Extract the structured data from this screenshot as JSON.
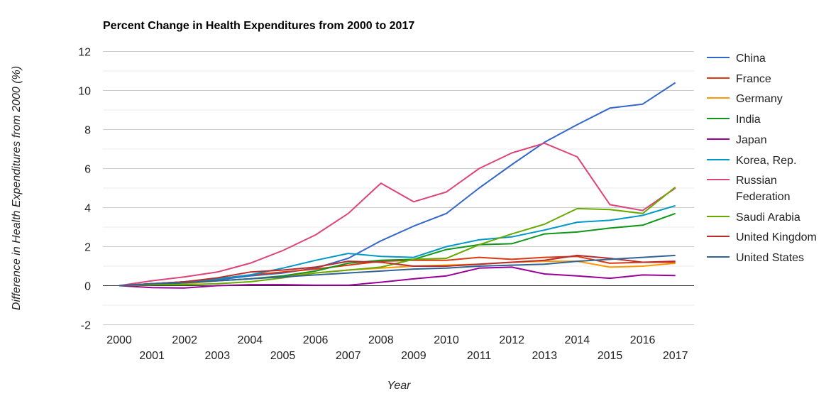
{
  "chart_data": {
    "type": "line",
    "title": "Percent Change in Health Expenditures from 2000 to 2017",
    "xlabel": "Year",
    "ylabel": "Difference in Health Expenditures from 2000 (%)",
    "ylim": [
      -2,
      12
    ],
    "yticks": [
      -2,
      0,
      2,
      4,
      6,
      8,
      10,
      12
    ],
    "x": [
      2000,
      2001,
      2002,
      2003,
      2004,
      2005,
      2006,
      2007,
      2008,
      2009,
      2010,
      2011,
      2012,
      2013,
      2014,
      2015,
      2016,
      2017
    ],
    "grid": true,
    "legend_position": "right",
    "series": [
      {
        "name": "China",
        "color": "#3366cc",
        "values": [
          0,
          0.1,
          0.2,
          0.3,
          0.5,
          0.65,
          0.9,
          1.4,
          2.3,
          3.05,
          3.7,
          5.0,
          6.2,
          7.35,
          8.25,
          9.1,
          9.3,
          10.4
        ]
      },
      {
        "name": "France",
        "color": "#dc3912",
        "values": [
          0,
          0.1,
          0.2,
          0.35,
          0.55,
          0.7,
          0.85,
          1.05,
          1.25,
          1.3,
          1.3,
          1.45,
          1.35,
          1.45,
          1.5,
          1.15,
          1.2,
          1.2
        ]
      },
      {
        "name": "Germany",
        "color": "#ff9900",
        "values": [
          0,
          0.05,
          0.1,
          0.25,
          0.35,
          0.5,
          0.65,
          0.8,
          0.9,
          1.0,
          1.05,
          1.1,
          1.2,
          1.25,
          1.25,
          0.95,
          1.0,
          1.15
        ]
      },
      {
        "name": "India",
        "color": "#109618",
        "values": [
          0,
          0.05,
          0.15,
          0.25,
          0.35,
          0.5,
          0.75,
          1.15,
          1.3,
          1.35,
          1.85,
          2.1,
          2.15,
          2.65,
          2.75,
          2.95,
          3.1,
          3.7
        ]
      },
      {
        "name": "Japan",
        "color": "#990099",
        "values": [
          0,
          -0.1,
          -0.12,
          0,
          0.05,
          0.05,
          0.02,
          0.02,
          0.18,
          0.35,
          0.5,
          0.9,
          0.95,
          0.6,
          0.5,
          0.38,
          0.55,
          0.52
        ]
      },
      {
        "name": "Korea, Rep.",
        "color": "#0099c6",
        "values": [
          0,
          0.1,
          0.2,
          0.35,
          0.55,
          0.9,
          1.3,
          1.65,
          1.5,
          1.45,
          2.0,
          2.35,
          2.5,
          2.85,
          3.25,
          3.35,
          3.6,
          4.1
        ]
      },
      {
        "name": "Russian Federation",
        "color": "#dd4477",
        "values": [
          0,
          0.25,
          0.45,
          0.7,
          1.15,
          1.8,
          2.6,
          3.7,
          5.25,
          4.3,
          4.8,
          6.0,
          6.8,
          7.3,
          6.6,
          4.15,
          3.85,
          5.0
        ]
      },
      {
        "name": "Saudi Arabia",
        "color": "#66aa00",
        "values": [
          0,
          0.05,
          0.05,
          0.1,
          0.2,
          0.4,
          0.65,
          0.8,
          0.95,
          1.35,
          1.4,
          2.1,
          2.65,
          3.15,
          3.95,
          3.9,
          3.7,
          5.05
        ]
      },
      {
        "name": "United Kingdom",
        "color": "#b82e2e",
        "values": [
          0,
          0.1,
          0.2,
          0.4,
          0.7,
          0.8,
          0.95,
          1.25,
          1.2,
          1.0,
          1.0,
          1.1,
          1.2,
          1.3,
          1.55,
          1.4,
          1.2,
          1.25
        ]
      },
      {
        "name": "United States",
        "color": "#316395",
        "values": [
          0,
          0.1,
          0.15,
          0.25,
          0.35,
          0.45,
          0.55,
          0.65,
          0.75,
          0.85,
          0.9,
          1.0,
          1.05,
          1.1,
          1.25,
          1.35,
          1.45,
          1.55
        ]
      }
    ]
  }
}
